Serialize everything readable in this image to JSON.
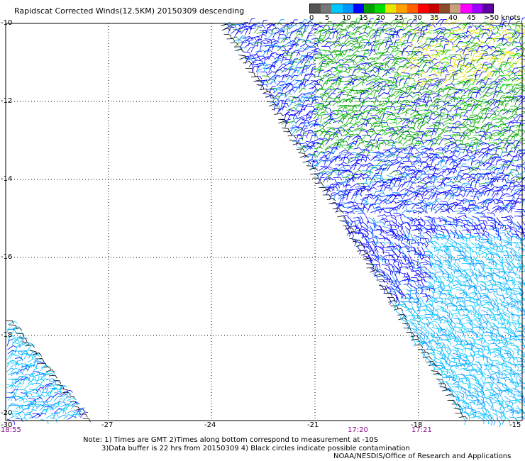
{
  "title": "Rapidscat Corrected Winds(12.5KM) 20150309 descending",
  "colorbar": {
    "labels": [
      "0",
      "5",
      "10",
      "15",
      "20",
      "25",
      "30",
      "35",
      "40",
      "45",
      ">50 knots"
    ],
    "colors": [
      "#555555",
      "#777777",
      "#00c8ff",
      "#0096ff",
      "#0000ff",
      "#00a000",
      "#00dc00",
      "#e6e600",
      "#ffa000",
      "#ff6000",
      "#ff0000",
      "#c80000",
      "#8c4a2a",
      "#c8a07a",
      "#ff00ff",
      "#a000ff",
      "#6000a0"
    ]
  },
  "map": {
    "y_ticks": [
      "-10",
      "-12",
      "-14",
      "-16",
      "-18",
      "-20"
    ],
    "x_ticks": [
      "-30",
      "-27",
      "-24",
      "-21",
      "-18",
      "-15"
    ],
    "time_labels": [
      "18:55",
      "17:20",
      "17:21"
    ]
  },
  "notes": {
    "line1": "Note: 1) Times are GMT 2)Times along bottom correspond to measurement at -10S",
    "line2": "3)Data buffer is 22 hrs from 20150309 4) Black circles indicate possible contamination",
    "credit": "NOAA/NESDIS/Office of Research and Applications"
  }
}
